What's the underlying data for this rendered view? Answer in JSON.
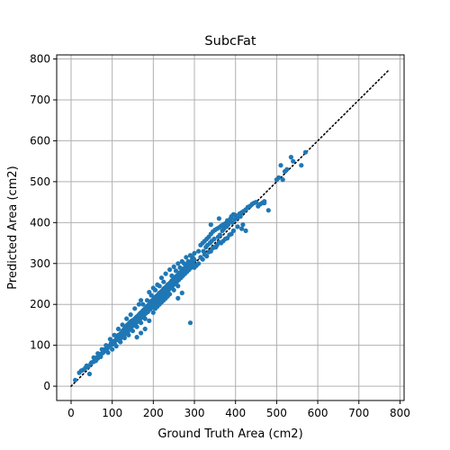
{
  "chart_data": {
    "type": "scatter",
    "title": "SubcFat",
    "xlabel": "Ground Truth Area (cm2)",
    "ylabel": "Predicted Area (cm2)",
    "xlim": [
      -35,
      810
    ],
    "ylim": [
      -35,
      810
    ],
    "xticks": [
      0,
      100,
      200,
      300,
      400,
      500,
      600,
      700,
      800
    ],
    "yticks": [
      0,
      100,
      200,
      300,
      400,
      500,
      600,
      700,
      800
    ],
    "grid": true,
    "marker_color": "#1f77b4",
    "reference_line": {
      "style": "dotted",
      "color": "#000000",
      "x": [
        0,
        775
      ],
      "y": [
        0,
        775
      ]
    },
    "points": [
      [
        10,
        15
      ],
      [
        20,
        33
      ],
      [
        25,
        38
      ],
      [
        30,
        40
      ],
      [
        35,
        45
      ],
      [
        38,
        50
      ],
      [
        42,
        48
      ],
      [
        45,
        30
      ],
      [
        48,
        55
      ],
      [
        50,
        58
      ],
      [
        55,
        60
      ],
      [
        58,
        65
      ],
      [
        60,
        62
      ],
      [
        62,
        70
      ],
      [
        65,
        68
      ],
      [
        68,
        75
      ],
      [
        70,
        78
      ],
      [
        72,
        72
      ],
      [
        75,
        80
      ],
      [
        78,
        82
      ],
      [
        80,
        85
      ],
      [
        82,
        90
      ],
      [
        85,
        88
      ],
      [
        88,
        92
      ],
      [
        90,
        95
      ],
      [
        92,
        98
      ],
      [
        95,
        100
      ],
      [
        97,
        105
      ],
      [
        100,
        102
      ],
      [
        102,
        108
      ],
      [
        104,
        110
      ],
      [
        106,
        104
      ],
      [
        108,
        112
      ],
      [
        110,
        115
      ],
      [
        112,
        118
      ],
      [
        114,
        120
      ],
      [
        115,
        125
      ],
      [
        116,
        112
      ],
      [
        118,
        122
      ],
      [
        120,
        128
      ],
      [
        121,
        118
      ],
      [
        122,
        130
      ],
      [
        124,
        126
      ],
      [
        125,
        135
      ],
      [
        126,
        132
      ],
      [
        128,
        138
      ],
      [
        129,
        125
      ],
      [
        130,
        140
      ],
      [
        132,
        136
      ],
      [
        133,
        145
      ],
      [
        134,
        130
      ],
      [
        135,
        142
      ],
      [
        136,
        148
      ],
      [
        137,
        150
      ],
      [
        138,
        132
      ],
      [
        139,
        145
      ],
      [
        140,
        152
      ],
      [
        141,
        138
      ],
      [
        142,
        155
      ],
      [
        143,
        148
      ],
      [
        144,
        142
      ],
      [
        145,
        158
      ],
      [
        146,
        150
      ],
      [
        147,
        145
      ],
      [
        148,
        160
      ],
      [
        149,
        152
      ],
      [
        150,
        156
      ],
      [
        151,
        148
      ],
      [
        152,
        162
      ],
      [
        153,
        150
      ],
      [
        154,
        158
      ],
      [
        155,
        165
      ],
      [
        156,
        160
      ],
      [
        157,
        152
      ],
      [
        158,
        168
      ],
      [
        159,
        162
      ],
      [
        160,
        170
      ],
      [
        161,
        165
      ],
      [
        162,
        158
      ],
      [
        163,
        172
      ],
      [
        164,
        168
      ],
      [
        165,
        175
      ],
      [
        166,
        170
      ],
      [
        167,
        162
      ],
      [
        168,
        178
      ],
      [
        169,
        172
      ],
      [
        170,
        180
      ],
      [
        171,
        175
      ],
      [
        172,
        168
      ],
      [
        173,
        182
      ],
      [
        174,
        178
      ],
      [
        175,
        185
      ],
      [
        176,
        180
      ],
      [
        177,
        172
      ],
      [
        178,
        188
      ],
      [
        179,
        182
      ],
      [
        180,
        190
      ],
      [
        181,
        185
      ],
      [
        182,
        178
      ],
      [
        183,
        192
      ],
      [
        184,
        188
      ],
      [
        185,
        195
      ],
      [
        186,
        190
      ],
      [
        187,
        182
      ],
      [
        188,
        198
      ],
      [
        189,
        192
      ],
      [
        190,
        200
      ],
      [
        191,
        195
      ],
      [
        192,
        188
      ],
      [
        193,
        205
      ],
      [
        194,
        198
      ],
      [
        195,
        208
      ],
      [
        196,
        200
      ],
      [
        197,
        192
      ],
      [
        198,
        210
      ],
      [
        199,
        205
      ],
      [
        200,
        212
      ],
      [
        201,
        208
      ],
      [
        202,
        200
      ],
      [
        203,
        215
      ],
      [
        204,
        210
      ],
      [
        205,
        218
      ],
      [
        206,
        212
      ],
      [
        207,
        205
      ],
      [
        208,
        220
      ],
      [
        209,
        215
      ],
      [
        210,
        222
      ],
      [
        211,
        218
      ],
      [
        212,
        210
      ],
      [
        213,
        225
      ],
      [
        214,
        220
      ],
      [
        215,
        228
      ],
      [
        216,
        222
      ],
      [
        217,
        215
      ],
      [
        218,
        230
      ],
      [
        219,
        225
      ],
      [
        220,
        232
      ],
      [
        221,
        228
      ],
      [
        222,
        220
      ],
      [
        223,
        235
      ],
      [
        224,
        230
      ],
      [
        225,
        238
      ],
      [
        226,
        232
      ],
      [
        227,
        225
      ],
      [
        228,
        240
      ],
      [
        229,
        235
      ],
      [
        230,
        242
      ],
      [
        231,
        238
      ],
      [
        232,
        230
      ],
      [
        233,
        245
      ],
      [
        234,
        240
      ],
      [
        235,
        248
      ],
      [
        236,
        242
      ],
      [
        237,
        235
      ],
      [
        238,
        250
      ],
      [
        239,
        245
      ],
      [
        240,
        252
      ],
      [
        241,
        248
      ],
      [
        242,
        240
      ],
      [
        243,
        255
      ],
      [
        244,
        250
      ],
      [
        245,
        258
      ],
      [
        246,
        252
      ],
      [
        247,
        245
      ],
      [
        248,
        260
      ],
      [
        249,
        255
      ],
      [
        250,
        262
      ],
      [
        251,
        258
      ],
      [
        252,
        250
      ],
      [
        253,
        265
      ],
      [
        254,
        260
      ],
      [
        255,
        268
      ],
      [
        256,
        262
      ],
      [
        257,
        255
      ],
      [
        258,
        270
      ],
      [
        259,
        265
      ],
      [
        260,
        272
      ],
      [
        261,
        268
      ],
      [
        262,
        260
      ],
      [
        263,
        275
      ],
      [
        264,
        270
      ],
      [
        265,
        278
      ],
      [
        266,
        272
      ],
      [
        267,
        265
      ],
      [
        268,
        280
      ],
      [
        269,
        275
      ],
      [
        270,
        282
      ],
      [
        271,
        278
      ],
      [
        272,
        270
      ],
      [
        273,
        285
      ],
      [
        274,
        280
      ],
      [
        275,
        288
      ],
      [
        276,
        282
      ],
      [
        277,
        275
      ],
      [
        278,
        290
      ],
      [
        279,
        285
      ],
      [
        280,
        292
      ],
      [
        281,
        288
      ],
      [
        282,
        280
      ],
      [
        283,
        295
      ],
      [
        284,
        290
      ],
      [
        285,
        298
      ],
      [
        286,
        292
      ],
      [
        287,
        285
      ],
      [
        288,
        300
      ],
      [
        289,
        295
      ],
      [
        290,
        302
      ],
      [
        291,
        298
      ],
      [
        292,
        290
      ],
      [
        293,
        305
      ],
      [
        294,
        300
      ],
      [
        295,
        310
      ],
      [
        296,
        305
      ],
      [
        297,
        298
      ],
      [
        298,
        312
      ],
      [
        300,
        308
      ],
      [
        190,
        160
      ],
      [
        200,
        180
      ],
      [
        210,
        195
      ],
      [
        220,
        205
      ],
      [
        230,
        215
      ],
      [
        240,
        225
      ],
      [
        250,
        235
      ],
      [
        260,
        245
      ],
      [
        150,
        135
      ],
      [
        160,
        145
      ],
      [
        170,
        155
      ],
      [
        180,
        165
      ],
      [
        140,
        125
      ],
      [
        130,
        118
      ],
      [
        120,
        108
      ],
      [
        110,
        98
      ],
      [
        100,
        90
      ],
      [
        90,
        82
      ],
      [
        175,
        200
      ],
      [
        185,
        210
      ],
      [
        195,
        222
      ],
      [
        205,
        235
      ],
      [
        215,
        245
      ],
      [
        225,
        255
      ],
      [
        190,
        230
      ],
      [
        200,
        240
      ],
      [
        210,
        248
      ],
      [
        220,
        265
      ],
      [
        230,
        275
      ],
      [
        240,
        285
      ],
      [
        250,
        292
      ],
      [
        260,
        300
      ],
      [
        270,
        305
      ],
      [
        280,
        315
      ],
      [
        290,
        320
      ],
      [
        300,
        325
      ],
      [
        310,
        330
      ],
      [
        315,
        345
      ],
      [
        320,
        350
      ],
      [
        322,
        330
      ],
      [
        325,
        355
      ],
      [
        328,
        340
      ],
      [
        330,
        360
      ],
      [
        332,
        345
      ],
      [
        335,
        365
      ],
      [
        338,
        350
      ],
      [
        340,
        372
      ],
      [
        342,
        355
      ],
      [
        345,
        378
      ],
      [
        348,
        360
      ],
      [
        350,
        382
      ],
      [
        352,
        340
      ],
      [
        355,
        385
      ],
      [
        358,
        365
      ],
      [
        360,
        388
      ],
      [
        362,
        370
      ],
      [
        365,
        392
      ],
      [
        368,
        380
      ],
      [
        370,
        395
      ],
      [
        372,
        385
      ],
      [
        375,
        398
      ],
      [
        378,
        390
      ],
      [
        380,
        400
      ],
      [
        382,
        395
      ],
      [
        385,
        405
      ],
      [
        388,
        410
      ],
      [
        390,
        415
      ],
      [
        392,
        400
      ],
      [
        395,
        420
      ],
      [
        398,
        408
      ],
      [
        400,
        418
      ],
      [
        405,
        412
      ],
      [
        410,
        422
      ],
      [
        412,
        415
      ],
      [
        415,
        425
      ],
      [
        420,
        428
      ],
      [
        425,
        432
      ],
      [
        430,
        438
      ],
      [
        435,
        440
      ],
      [
        440,
        445
      ],
      [
        445,
        448
      ],
      [
        450,
        450
      ],
      [
        455,
        440
      ],
      [
        460,
        445
      ],
      [
        465,
        448
      ],
      [
        470,
        452
      ],
      [
        480,
        430
      ],
      [
        350,
        340
      ],
      [
        360,
        352
      ],
      [
        370,
        355
      ],
      [
        380,
        362
      ],
      [
        390,
        372
      ],
      [
        340,
        330
      ],
      [
        330,
        318
      ],
      [
        320,
        310
      ],
      [
        310,
        300
      ],
      [
        300,
        290
      ],
      [
        305,
        295
      ],
      [
        315,
        315
      ],
      [
        325,
        322
      ],
      [
        335,
        328
      ],
      [
        345,
        338
      ],
      [
        355,
        345
      ],
      [
        365,
        350
      ],
      [
        375,
        360
      ],
      [
        385,
        370
      ],
      [
        395,
        380
      ],
      [
        405,
        390
      ],
      [
        415,
        385
      ],
      [
        418,
        395
      ],
      [
        425,
        380
      ],
      [
        290,
        155
      ],
      [
        260,
        215
      ],
      [
        270,
        228
      ],
      [
        340,
        395
      ],
      [
        360,
        410
      ],
      [
        380,
        405
      ],
      [
        470,
        448
      ],
      [
        500,
        505
      ],
      [
        505,
        510
      ],
      [
        510,
        540
      ],
      [
        515,
        505
      ],
      [
        520,
        525
      ],
      [
        525,
        530
      ],
      [
        535,
        560
      ],
      [
        540,
        550
      ],
      [
        560,
        540
      ],
      [
        570,
        572
      ],
      [
        180,
        140
      ],
      [
        170,
        130
      ],
      [
        160,
        120
      ],
      [
        165,
        200
      ],
      [
        170,
        210
      ],
      [
        155,
        190
      ],
      [
        145,
        175
      ],
      [
        135,
        165
      ],
      [
        125,
        150
      ],
      [
        115,
        140
      ],
      [
        105,
        125
      ],
      [
        95,
        115
      ],
      [
        85,
        100
      ],
      [
        75,
        90
      ],
      [
        65,
        80
      ],
      [
        55,
        70
      ],
      [
        245,
        270
      ],
      [
        255,
        282
      ],
      [
        265,
        290
      ],
      [
        275,
        300
      ],
      [
        285,
        305
      ],
      [
        295,
        315
      ],
      [
        205,
        190
      ],
      [
        215,
        200
      ],
      [
        225,
        210
      ],
      [
        235,
        220
      ]
    ]
  }
}
